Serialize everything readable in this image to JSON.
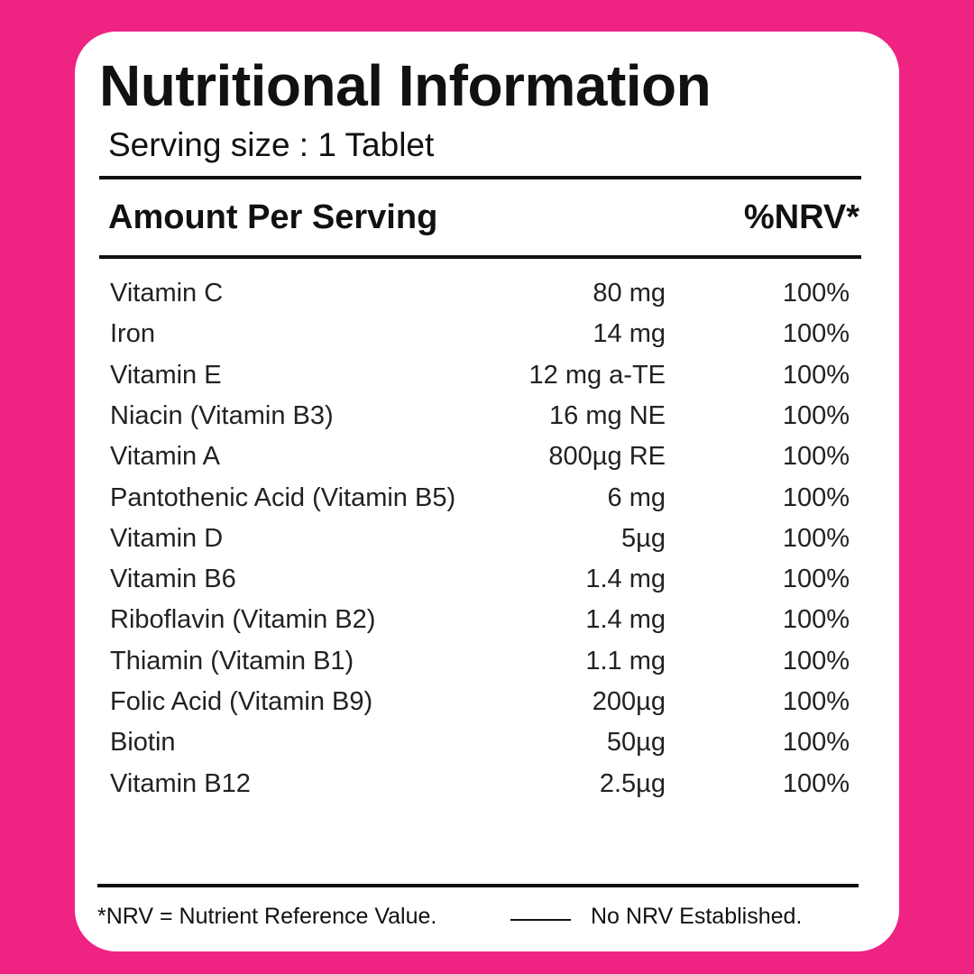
{
  "header": {
    "title": "Nutritional Information",
    "serving": "Serving size : 1 Tablet"
  },
  "table": {
    "headers": [
      "Amount Per Serving",
      "%NRV*"
    ],
    "rows": [
      [
        "Vitamin C",
        "80 mg",
        "100%"
      ],
      [
        "Iron",
        "14 mg",
        "100%"
      ],
      [
        "Vitamin E",
        "12 mg a-TE",
        "100%"
      ],
      [
        "Niacin (Vitamin B3)",
        "16 mg NE",
        "100%"
      ],
      [
        "Vitamin A",
        "800µg RE",
        "100%"
      ],
      [
        "Pantothenic Acid (Vitamin B5)",
        "6 mg",
        "100%"
      ],
      [
        "Vitamin D",
        "5µg",
        "100%"
      ],
      [
        "Vitamin B6",
        "1.4 mg",
        "100%"
      ],
      [
        "Riboflavin (Vitamin B2)",
        "1.4 mg",
        "100%"
      ],
      [
        "Thiamin (Vitamin B1)",
        "1.1 mg",
        "100%"
      ],
      [
        "Folic Acid (Vitamin B9)",
        "200µg",
        "100%"
      ],
      [
        "Biotin",
        "50µg",
        "100%"
      ],
      [
        "Vitamin B12",
        "2.5µg",
        "100%"
      ]
    ]
  },
  "footer": {
    "note": "*NRV = Nutrient Reference Value.",
    "no_nrv": "No NRV Established."
  }
}
